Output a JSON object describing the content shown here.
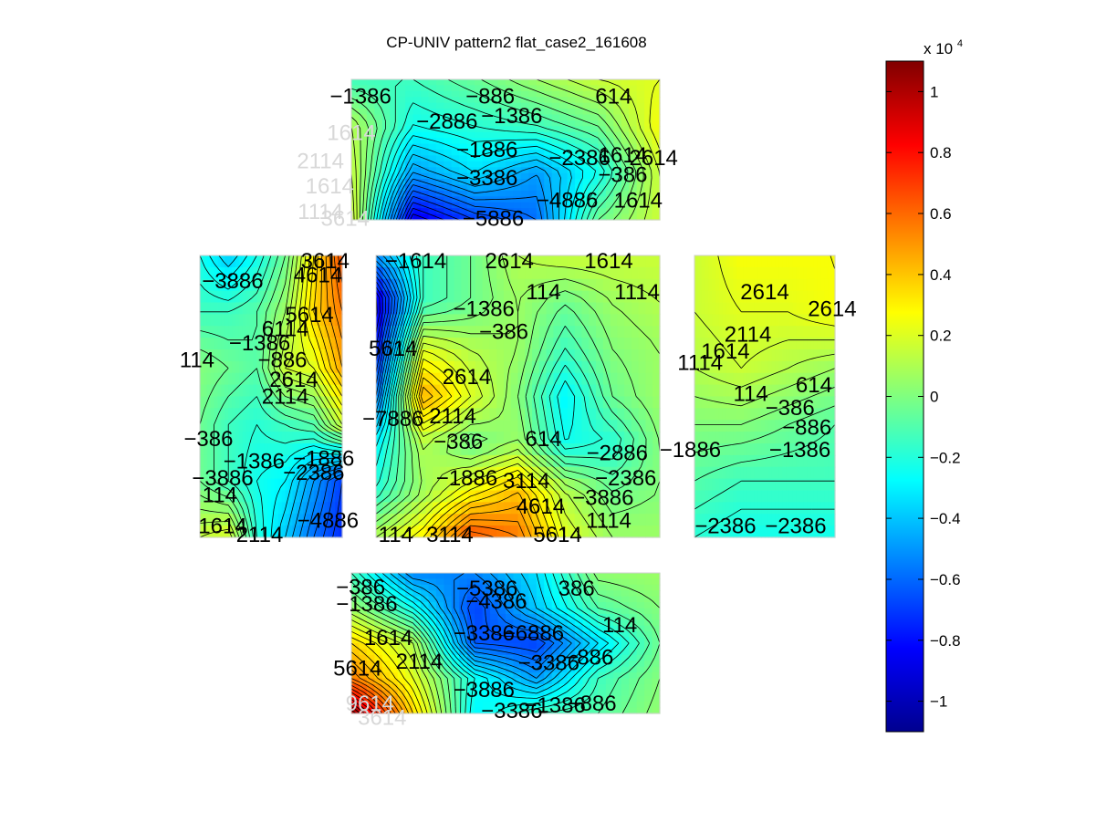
{
  "chart_data": {
    "type": "heatmap",
    "title": "CP-UNIV pattern2 flat_case2_161608",
    "colormap": "jet",
    "grid": false,
    "legend": "colorbar-right",
    "colorbar": {
      "exponent_label": "x 10",
      "exponent": "4",
      "clim": [
        -1.1,
        1.1
      ],
      "ticks": [
        1,
        0.8,
        0.6,
        0.4,
        0.2,
        0,
        -0.2,
        -0.4,
        -0.6,
        -0.8,
        -1
      ],
      "tick_labels": [
        "1",
        "0.8",
        "0.6",
        "0.4",
        "0.2",
        "0",
        "−0.2",
        "−0.4",
        "−0.6",
        "−0.8",
        "−1"
      ]
    },
    "panels": [
      {
        "id": "top",
        "grid_values": [
          [
            -1386,
            -1386,
            -500,
            614,
            1614,
            2114
          ],
          [
            1114,
            -2386,
            -1886,
            -1386,
            -386,
            2614
          ],
          [
            1614,
            -4886,
            -3386,
            -4886,
            -2386,
            1614
          ],
          [
            2114,
            -8886,
            -6886,
            -5886,
            -386,
            1614
          ]
        ],
        "contour_labels": [
          {
            "text": "−1386",
            "u": 0.03,
            "v": 0.12
          },
          {
            "text": "−886",
            "u": 0.45,
            "v": 0.12
          },
          {
            "text": "614",
            "u": 0.85,
            "v": 0.12
          },
          {
            "text": "−2886",
            "u": 0.31,
            "v": 0.3
          },
          {
            "text": "−1386",
            "u": 0.52,
            "v": 0.26
          },
          {
            "text": "−1886",
            "u": 0.44,
            "v": 0.5
          },
          {
            "text": "−2386",
            "u": 0.74,
            "v": 0.56
          },
          {
            "text": "1614",
            "u": 0.88,
            "v": 0.54
          },
          {
            "text": "2614",
            "u": 0.98,
            "v": 0.56
          },
          {
            "text": "−386",
            "u": 0.88,
            "v": 0.68
          },
          {
            "text": "−3386",
            "u": 0.44,
            "v": 0.7
          },
          {
            "text": "−4886",
            "u": 0.7,
            "v": 0.86
          },
          {
            "text": "1614",
            "u": 0.93,
            "v": 0.86
          },
          {
            "text": "−5886",
            "u": 0.46,
            "v": 0.99
          },
          {
            "text": "1614",
            "u": 0.0,
            "v": 0.38,
            "light": true
          },
          {
            "text": "2114",
            "u": -0.1,
            "v": 0.58,
            "light": true
          },
          {
            "text": "1614",
            "u": -0.07,
            "v": 0.76,
            "light": true
          },
          {
            "text": "1114",
            "u": -0.1,
            "v": 0.94,
            "light": true
          },
          {
            "text": "3614",
            "u": -0.02,
            "v": 0.99,
            "light": true
          }
        ]
      },
      {
        "id": "left",
        "grid_values": [
          [
            -2386,
            -3886,
            -2386,
            -386,
            3114,
            6614
          ],
          [
            -1386,
            -1386,
            -886,
            614,
            3614,
            5614
          ],
          [
            114,
            -386,
            -886,
            1614,
            2114,
            4614
          ],
          [
            -386,
            -1386,
            -1886,
            -1386,
            -886,
            1614
          ],
          [
            -386,
            -1386,
            -2386,
            -2886,
            -4886,
            -6886
          ],
          [
            1614,
            2114,
            -1886,
            -3886,
            -5886,
            -7386
          ]
        ],
        "contour_labels": [
          {
            "text": "−3886",
            "u": 0.23,
            "v": 0.09
          },
          {
            "text": "3614",
            "u": 0.88,
            "v": 0.02
          },
          {
            "text": "4614",
            "u": 0.83,
            "v": 0.07
          },
          {
            "text": "5614",
            "u": 0.77,
            "v": 0.21
          },
          {
            "text": "6114",
            "u": 0.6,
            "v": 0.26
          },
          {
            "text": "−1386",
            "u": 0.42,
            "v": 0.31
          },
          {
            "text": "114",
            "u": -0.02,
            "v": 0.37
          },
          {
            "text": "−886",
            "u": 0.58,
            "v": 0.37
          },
          {
            "text": "2614",
            "u": 0.66,
            "v": 0.44
          },
          {
            "text": "2114",
            "u": 0.6,
            "v": 0.5
          },
          {
            "text": "−386",
            "u": 0.06,
            "v": 0.65
          },
          {
            "text": "−1386",
            "u": 0.38,
            "v": 0.73
          },
          {
            "text": "−1886",
            "u": 0.87,
            "v": 0.72
          },
          {
            "text": "−2386",
            "u": 0.8,
            "v": 0.77
          },
          {
            "text": "−3886",
            "u": 0.16,
            "v": 0.79
          },
          {
            "text": "114",
            "u": 0.14,
            "v": 0.85
          },
          {
            "text": "−4886",
            "u": 0.9,
            "v": 0.94
          },
          {
            "text": "1614",
            "u": 0.16,
            "v": 0.96
          },
          {
            "text": "2114",
            "u": 0.42,
            "v": 0.99
          }
        ]
      },
      {
        "id": "center",
        "grid_values": [
          [
            -4886,
            -1386,
            -386,
            1114,
            1614,
            1614,
            1614
          ],
          [
            -9386,
            -1386,
            -386,
            614,
            -386,
            614,
            1114
          ],
          [
            -7886,
            2114,
            1114,
            614,
            -1386,
            114,
            614
          ],
          [
            -5886,
            4614,
            2114,
            114,
            -2886,
            -386,
            614
          ],
          [
            -2886,
            1114,
            -386,
            614,
            -2386,
            -1886,
            114
          ],
          [
            -1886,
            614,
            2614,
            4114,
            1114,
            -386,
            114
          ],
          [
            1114,
            3114,
            6614,
            5614,
            2114,
            614,
            614
          ]
        ],
        "contour_labels": [
          {
            "text": "−1614",
            "u": 0.14,
            "v": 0.02
          },
          {
            "text": "2614",
            "u": 0.47,
            "v": 0.02
          },
          {
            "text": "1614",
            "u": 0.82,
            "v": 0.02
          },
          {
            "text": "1114",
            "u": 0.92,
            "v": 0.13
          },
          {
            "text": "114",
            "u": 0.59,
            "v": 0.13
          },
          {
            "text": "−1386",
            "u": 0.38,
            "v": 0.19
          },
          {
            "text": "−386",
            "u": 0.45,
            "v": 0.27
          },
          {
            "text": "5614",
            "u": 0.06,
            "v": 0.33
          },
          {
            "text": "2614",
            "u": 0.32,
            "v": 0.43
          },
          {
            "text": "−7886",
            "u": 0.06,
            "v": 0.58
          },
          {
            "text": "2114",
            "u": 0.27,
            "v": 0.57
          },
          {
            "text": "−386",
            "u": 0.29,
            "v": 0.66
          },
          {
            "text": "614",
            "u": 0.59,
            "v": 0.65
          },
          {
            "text": "−2886",
            "u": 0.85,
            "v": 0.7
          },
          {
            "text": "−2386",
            "u": 0.88,
            "v": 0.79
          },
          {
            "text": "−1886",
            "u": 0.32,
            "v": 0.79
          },
          {
            "text": "3114",
            "u": 0.53,
            "v": 0.8
          },
          {
            "text": "−3886",
            "u": 0.8,
            "v": 0.86
          },
          {
            "text": "4614",
            "u": 0.58,
            "v": 0.89
          },
          {
            "text": "1114",
            "u": 0.82,
            "v": 0.94
          },
          {
            "text": "5614",
            "u": 0.64,
            "v": 0.99
          },
          {
            "text": "114",
            "u": 0.07,
            "v": 0.99
          },
          {
            "text": "3114",
            "u": 0.26,
            "v": 0.99
          }
        ]
      },
      {
        "id": "right",
        "grid_values": [
          [
            1614,
            2614,
            2614,
            2614
          ],
          [
            1614,
            2114,
            2114,
            2614
          ],
          [
            1114,
            1614,
            1114,
            614
          ],
          [
            114,
            114,
            -386,
            -886
          ],
          [
            -886,
            -1386,
            -1386,
            -1386
          ],
          [
            -1886,
            -2386,
            -2386,
            -2386
          ]
        ],
        "contour_labels": [
          {
            "text": "2614",
            "u": 0.5,
            "v": 0.13
          },
          {
            "text": "2614",
            "u": 0.98,
            "v": 0.19
          },
          {
            "text": "2114",
            "u": 0.38,
            "v": 0.28
          },
          {
            "text": "1614",
            "u": 0.22,
            "v": 0.34
          },
          {
            "text": "1114",
            "u": 0.04,
            "v": 0.38
          },
          {
            "text": "614",
            "u": 0.85,
            "v": 0.46
          },
          {
            "text": "114",
            "u": 0.4,
            "v": 0.49
          },
          {
            "text": "−386",
            "u": 0.68,
            "v": 0.54
          },
          {
            "text": "−886",
            "u": 0.8,
            "v": 0.61
          },
          {
            "text": "−1886",
            "u": -0.03,
            "v": 0.69
          },
          {
            "text": "−1386",
            "u": 0.75,
            "v": 0.69
          },
          {
            "text": "−2386",
            "u": 0.22,
            "v": 0.96
          },
          {
            "text": "−2386",
            "u": 0.72,
            "v": 0.96
          }
        ]
      },
      {
        "id": "bottom",
        "grid_values": [
          [
            -1386,
            -5386,
            -5386,
            -3386,
            386,
            614
          ],
          [
            614,
            -2386,
            -6886,
            -3886,
            -886,
            114
          ],
          [
            3614,
            1114,
            -6386,
            -6886,
            -3386,
            -386
          ],
          [
            5614,
            2114,
            -2386,
            -4886,
            -1386,
            114
          ],
          [
            10614,
            3614,
            -2886,
            -1386,
            -886,
            386
          ]
        ],
        "contour_labels": [
          {
            "text": "−386",
            "u": 0.03,
            "v": 0.1
          },
          {
            "text": "−5386",
            "u": 0.44,
            "v": 0.11
          },
          {
            "text": "386",
            "u": 0.73,
            "v": 0.11
          },
          {
            "text": "−1386",
            "u": 0.05,
            "v": 0.22
          },
          {
            "text": "−4386",
            "u": 0.47,
            "v": 0.2
          },
          {
            "text": "114",
            "u": 0.87,
            "v": 0.37
          },
          {
            "text": "1614",
            "u": 0.12,
            "v": 0.46
          },
          {
            "text": "−3386",
            "u": 0.43,
            "v": 0.43
          },
          {
            "text": "−6886",
            "u": 0.59,
            "v": 0.43
          },
          {
            "text": "−3386",
            "u": 0.64,
            "v": 0.64
          },
          {
            "text": "−886",
            "u": 0.77,
            "v": 0.6
          },
          {
            "text": "5614",
            "u": 0.02,
            "v": 0.68
          },
          {
            "text": "2114",
            "u": 0.22,
            "v": 0.63
          },
          {
            "text": "−3886",
            "u": 0.43,
            "v": 0.83
          },
          {
            "text": "−1386",
            "u": 0.66,
            "v": 0.94
          },
          {
            "text": "−3386",
            "u": 0.52,
            "v": 0.98
          },
          {
            "text": "−886",
            "u": 0.78,
            "v": 0.93
          },
          {
            "text": "9614",
            "u": 0.06,
            "v": 0.93,
            "light": true
          },
          {
            "text": "3614",
            "u": 0.1,
            "v": 1.03,
            "light": true
          }
        ]
      }
    ]
  }
}
